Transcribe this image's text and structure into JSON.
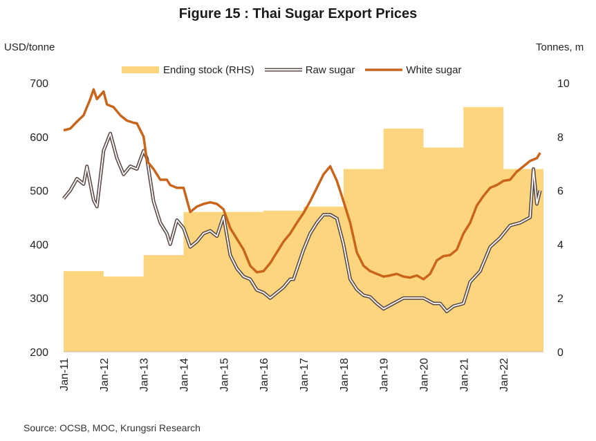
{
  "title": "Figure 15 : Thai Sugar Export Prices",
  "source": "Source: OCSB, MOC, Krungsri Research",
  "colors": {
    "stock": "#FCD57E",
    "raw": "#5B4A47",
    "white": "#C8651B"
  },
  "chart_data": {
    "type": "line",
    "title": "Figure 15 : Thai Sugar Export Prices",
    "ylabel": "USD/tonne",
    "y2label": "Tonnes, m",
    "ylim": [
      200,
      700
    ],
    "y2lim": [
      0,
      10
    ],
    "yticks": [
      "700",
      "600",
      "500",
      "400",
      "300",
      "200"
    ],
    "y2ticks": [
      "10",
      "8",
      "6",
      "4",
      "2",
      "0"
    ],
    "xticks": [
      "Jan-11",
      "Jan-12",
      "Jan-13",
      "Jan-14",
      "Jan-15",
      "Jan-16",
      "Jan-17",
      "Jan-18",
      "Jan-19",
      "Jan-20",
      "Jan-21",
      "Jan-22"
    ],
    "legend_position": "top",
    "grid": false,
    "series": [
      {
        "name": "Ending stock (RHS)",
        "type": "area",
        "axis": "right",
        "x": [
          "2011-01",
          "2012-01",
          "2013-01",
          "2014-01",
          "2015-01",
          "2016-01",
          "2017-01",
          "2018-01",
          "2019-01",
          "2020-01",
          "2021-01",
          "2022-01",
          "2022-12"
        ],
        "values": [
          3.0,
          2.8,
          3.6,
          5.2,
          5.2,
          5.25,
          5.4,
          6.8,
          8.3,
          7.6,
          9.1,
          6.8,
          6.8
        ]
      },
      {
        "name": "Raw sugar",
        "type": "line",
        "axis": "left",
        "x": [
          "2011-01",
          "2011-03",
          "2011-05",
          "2011-07",
          "2011-08",
          "2011-10",
          "2011-11",
          "2012-01",
          "2012-02",
          "2012-03",
          "2012-05",
          "2012-07",
          "2012-09",
          "2012-11",
          "2013-01",
          "2013-02",
          "2013-04",
          "2013-06",
          "2013-08",
          "2013-09",
          "2013-11",
          "2014-01",
          "2014-03",
          "2014-05",
          "2014-07",
          "2014-09",
          "2014-11",
          "2015-01",
          "2015-03",
          "2015-05",
          "2015-07",
          "2015-09",
          "2015-11",
          "2016-01",
          "2016-03",
          "2016-05",
          "2016-07",
          "2016-09",
          "2016-10",
          "2017-01",
          "2017-03",
          "2017-05",
          "2017-07",
          "2017-09",
          "2017-11",
          "2018-01",
          "2018-03",
          "2018-05",
          "2018-07",
          "2018-09",
          "2018-11",
          "2019-01",
          "2019-04",
          "2019-07",
          "2019-10",
          "2020-01",
          "2020-04",
          "2020-06",
          "2020-08",
          "2020-10",
          "2021-01",
          "2021-03",
          "2021-06",
          "2021-09",
          "2021-12",
          "2022-03",
          "2022-06",
          "2022-09",
          "2022-10",
          "2022-11",
          "2022-12"
        ],
        "values": [
          485,
          500,
          522,
          512,
          545,
          482,
          470,
          574,
          590,
          606,
          560,
          530,
          545,
          540,
          574,
          560,
          480,
          440,
          420,
          400,
          445,
          430,
          395,
          405,
          420,
          425,
          415,
          452,
          380,
          355,
          340,
          335,
          315,
          310,
          300,
          310,
          320,
          335,
          335,
          390,
          420,
          440,
          455,
          455,
          448,
          400,
          335,
          316,
          305,
          302,
          290,
          280,
          290,
          300,
          300,
          300,
          290,
          290,
          275,
          285,
          290,
          330,
          350,
          395,
          412,
          435,
          440,
          450,
          540,
          475,
          500
        ]
      },
      {
        "name": "White sugar",
        "type": "line",
        "axis": "left",
        "x": [
          "2011-01",
          "2011-03",
          "2011-05",
          "2011-07",
          "2011-09",
          "2011-10",
          "2011-11",
          "2012-01",
          "2012-02",
          "2012-04",
          "2012-06",
          "2012-08",
          "2012-09",
          "2012-10",
          "2012-11",
          "2013-01",
          "2013-02",
          "2013-04",
          "2013-06",
          "2013-08",
          "2013-09",
          "2013-11",
          "2014-01",
          "2014-03",
          "2014-05",
          "2014-07",
          "2014-09",
          "2014-11",
          "2015-01",
          "2015-03",
          "2015-05",
          "2015-07",
          "2015-09",
          "2015-11",
          "2016-01",
          "2016-03",
          "2016-05",
          "2016-07",
          "2016-09",
          "2016-11",
          "2017-01",
          "2017-03",
          "2017-05",
          "2017-07",
          "2017-09",
          "2017-11",
          "2018-01",
          "2018-03",
          "2018-05",
          "2018-07",
          "2018-09",
          "2018-11",
          "2019-01",
          "2019-03",
          "2019-05",
          "2019-07",
          "2019-09",
          "2019-11",
          "2020-01",
          "2020-03",
          "2020-05",
          "2020-07",
          "2020-09",
          "2020-11",
          "2021-01",
          "2021-03",
          "2021-05",
          "2021-07",
          "2021-09",
          "2021-11",
          "2022-01",
          "2022-03",
          "2022-05",
          "2022-07",
          "2022-09",
          "2022-11",
          "2022-12"
        ],
        "values": [
          612,
          615,
          628,
          640,
          670,
          688,
          670,
          684,
          660,
          655,
          640,
          630,
          628,
          626,
          625,
          600,
          555,
          540,
          520,
          520,
          510,
          505,
          505,
          460,
          470,
          475,
          478,
          475,
          465,
          430,
          410,
          390,
          360,
          348,
          350,
          365,
          385,
          405,
          420,
          440,
          458,
          480,
          505,
          530,
          545,
          518,
          480,
          440,
          385,
          360,
          350,
          345,
          340,
          342,
          345,
          340,
          338,
          342,
          335,
          345,
          370,
          378,
          380,
          390,
          420,
          440,
          472,
          490,
          505,
          510,
          518,
          520,
          535,
          545,
          555,
          560,
          570
        ]
      }
    ]
  }
}
